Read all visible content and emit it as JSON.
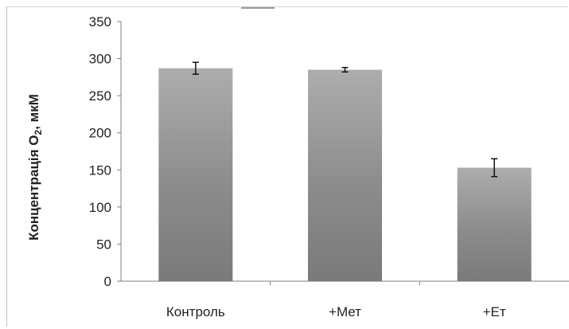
{
  "chart_data": {
    "type": "bar",
    "title": "",
    "xlabel": "",
    "ylabel": {
      "text": "Концентрація O",
      "subscript": "2",
      "suffix": ", мкМ"
    },
    "categories": [
      "Контроль",
      "+Мет",
      "+Ет"
    ],
    "values": [
      287,
      285,
      153
    ],
    "errors": [
      8,
      3,
      12
    ],
    "ylim": [
      0,
      350
    ],
    "yticks": [
      0,
      50,
      100,
      150,
      200,
      250,
      300,
      350
    ],
    "grid": false,
    "legend": "none",
    "bar_color": "#8c8c8c"
  }
}
